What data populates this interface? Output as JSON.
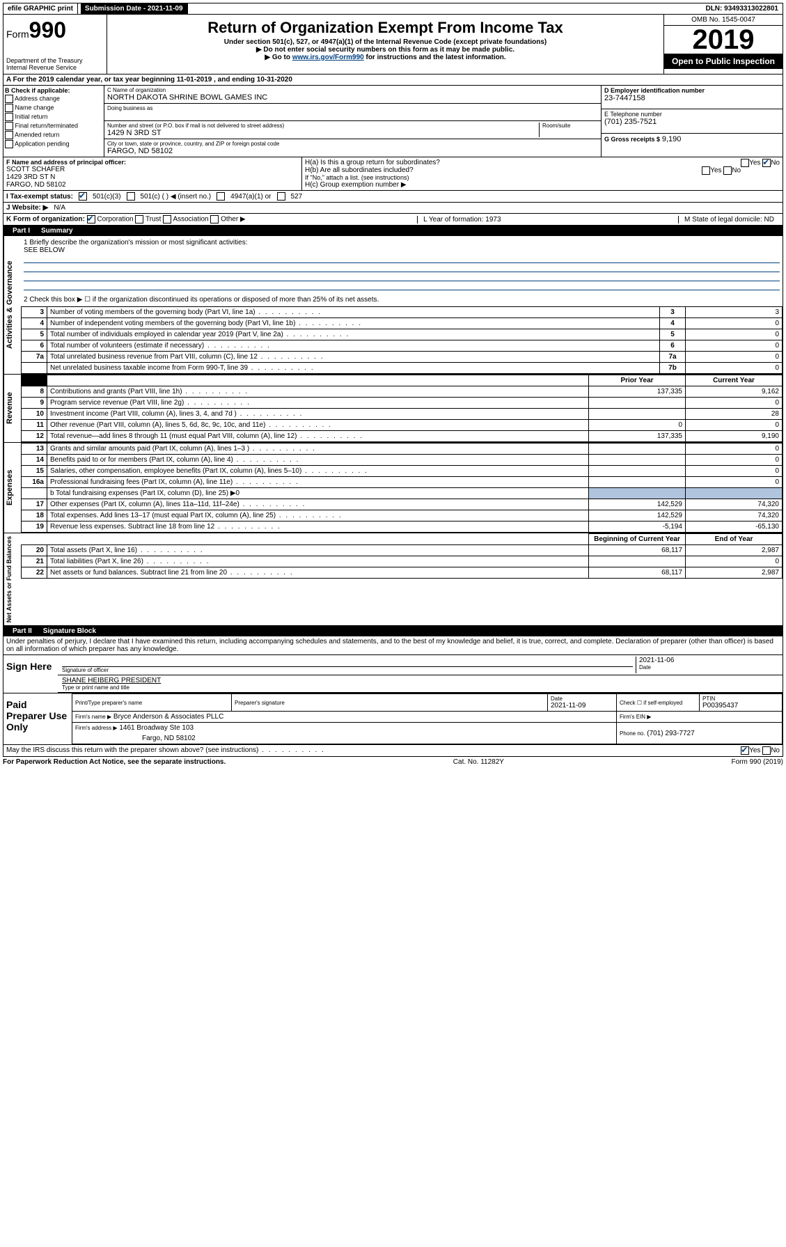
{
  "top_bar": {
    "efile": "efile GRAPHIC print",
    "submission_label": "Submission Date - 2021-11-09",
    "dln_label": "DLN: 93493313022801"
  },
  "header": {
    "form_prefix": "Form",
    "form_number": "990",
    "dept": "Department of the Treasury",
    "irs": "Internal Revenue Service",
    "title": "Return of Organization Exempt From Income Tax",
    "subtitle1": "Under section 501(c), 527, or 4947(a)(1) of the Internal Revenue Code (except private foundations)",
    "subtitle2": "▶ Do not enter social security numbers on this form as it may be made public.",
    "subtitle3_pre": "▶ Go to ",
    "subtitle3_link": "www.irs.gov/Form990",
    "subtitle3_post": " for instructions and the latest information.",
    "omb": "OMB No. 1545-0047",
    "year": "2019",
    "open_public": "Open to Public Inspection"
  },
  "period": {
    "line": "A For the 2019 calendar year, or tax year beginning 11-01-2019   , and ending 10-31-2020"
  },
  "boxB": {
    "header": "B Check if applicable:",
    "opts": [
      "Address change",
      "Name change",
      "Initial return",
      "Final return/terminated",
      "Amended return",
      "Application pending"
    ]
  },
  "boxC": {
    "name_label": "C Name of organization",
    "name": "NORTH DAKOTA SHRINE BOWL GAMES INC",
    "dba_label": "Doing business as",
    "dba": "",
    "addr_label": "Number and street (or P.O. box if mail is not delivered to street address)",
    "room_label": "Room/suite",
    "addr": "1429 N 3RD ST",
    "city_label": "City or town, state or province, country, and ZIP or foreign postal code",
    "city": "FARGO, ND  58102"
  },
  "boxD": {
    "label": "D Employer identification number",
    "value": "23-7447158"
  },
  "boxE": {
    "label": "E Telephone number",
    "value": "(701) 235-7521"
  },
  "boxG": {
    "label": "G Gross receipts $",
    "value": "9,190"
  },
  "boxF": {
    "label": "F  Name and address of principal officer:",
    "name": "SCOTT SCHAFER",
    "addr1": "1429 3RD ST N",
    "addr2": "FARGO, ND  58102"
  },
  "boxH": {
    "a": "H(a)  Is this a group return for subordinates?",
    "a_yes": "Yes",
    "a_no": "No",
    "b": "H(b)  Are all subordinates included?",
    "b_yes": "Yes",
    "b_no": "No",
    "b_note": "If \"No,\" attach a list. (see instructions)",
    "c": "H(c)  Group exemption number ▶"
  },
  "boxI": {
    "label": "I   Tax-exempt status:",
    "o1": "501(c)(3)",
    "o2": "501(c) (  ) ◀ (insert no.)",
    "o3": "4947(a)(1) or",
    "o4": "527"
  },
  "boxJ": {
    "label": "J   Website: ▶",
    "value": "N/A"
  },
  "boxK": {
    "label": "K Form of organization:",
    "o1": "Corporation",
    "o2": "Trust",
    "o3": "Association",
    "o4": "Other ▶",
    "L": "L Year of formation: 1973",
    "M": "M State of legal domicile: ND"
  },
  "part1": {
    "header_num": "Part I",
    "header_title": "Summary",
    "q1": "1  Briefly describe the organization's mission or most significant activities:",
    "q1_val": "SEE BELOW",
    "q2": "2   Check this box ▶ ☐  if the organization discontinued its operations or disposed of more than 25% of its net assets.",
    "vert1": "Activities & Governance",
    "vert2": "Revenue",
    "vert3": "Expenses",
    "vert4": "Net Assets or Fund Balances",
    "gov_rows": [
      {
        "n": "3",
        "label": "Number of voting members of the governing body (Part VI, line 1a)",
        "col": "3",
        "v": "3"
      },
      {
        "n": "4",
        "label": "Number of independent voting members of the governing body (Part VI, line 1b)",
        "col": "4",
        "v": "0"
      },
      {
        "n": "5",
        "label": "Total number of individuals employed in calendar year 2019 (Part V, line 2a)",
        "col": "5",
        "v": "0"
      },
      {
        "n": "6",
        "label": "Total number of volunteers (estimate if necessary)",
        "col": "6",
        "v": "0"
      },
      {
        "n": "7a",
        "label": "Total unrelated business revenue from Part VIII, column (C), line 12",
        "col": "7a",
        "v": "0"
      },
      {
        "n": "",
        "label": "Net unrelated business taxable income from Form 990-T, line 39",
        "col": "7b",
        "v": "0"
      }
    ],
    "col_prior": "Prior Year",
    "col_current": "Current Year",
    "rev_rows": [
      {
        "n": "8",
        "label": "Contributions and grants (Part VIII, line 1h)",
        "p": "137,335",
        "c": "9,162"
      },
      {
        "n": "9",
        "label": "Program service revenue (Part VIII, line 2g)",
        "p": "",
        "c": "0"
      },
      {
        "n": "10",
        "label": "Investment income (Part VIII, column (A), lines 3, 4, and 7d )",
        "p": "",
        "c": "28"
      },
      {
        "n": "11",
        "label": "Other revenue (Part VIII, column (A), lines 5, 6d, 8c, 9c, 10c, and 11e)",
        "p": "0",
        "c": "0"
      },
      {
        "n": "12",
        "label": "Total revenue—add lines 8 through 11 (must equal Part VIII, column (A), line 12)",
        "p": "137,335",
        "c": "9,190"
      }
    ],
    "exp_rows": [
      {
        "n": "13",
        "label": "Grants and similar amounts paid (Part IX, column (A), lines 1–3 )",
        "p": "",
        "c": "0"
      },
      {
        "n": "14",
        "label": "Benefits paid to or for members (Part IX, column (A), line 4)",
        "p": "",
        "c": "0"
      },
      {
        "n": "15",
        "label": "Salaries, other compensation, employee benefits (Part IX, column (A), lines 5–10)",
        "p": "",
        "c": "0"
      },
      {
        "n": "16a",
        "label": "Professional fundraising fees (Part IX, column (A), line 11e)",
        "p": "",
        "c": "0"
      }
    ],
    "exp_b": "b  Total fundraising expenses (Part IX, column (D), line 25) ▶0",
    "exp_rows2": [
      {
        "n": "17",
        "label": "Other expenses (Part IX, column (A), lines 11a–11d, 11f–24e)",
        "p": "142,529",
        "c": "74,320"
      },
      {
        "n": "18",
        "label": "Total expenses. Add lines 13–17 (must equal Part IX, column (A), line 25)",
        "p": "142,529",
        "c": "74,320"
      },
      {
        "n": "19",
        "label": "Revenue less expenses. Subtract line 18 from line 12",
        "p": "-5,194",
        "c": "-65,130"
      }
    ],
    "col_begin": "Beginning of Current Year",
    "col_end": "End of Year",
    "net_rows": [
      {
        "n": "20",
        "label": "Total assets (Part X, line 16)",
        "p": "68,117",
        "c": "2,987"
      },
      {
        "n": "21",
        "label": "Total liabilities (Part X, line 26)",
        "p": "",
        "c": "0"
      },
      {
        "n": "22",
        "label": "Net assets or fund balances. Subtract line 21 from line 20",
        "p": "68,117",
        "c": "2,987"
      }
    ]
  },
  "part2": {
    "header_num": "Part II",
    "header_title": "Signature Block",
    "perjury": "Under penalties of perjury, I declare that I have examined this return, including accompanying schedules and statements, and to the best of my knowledge and belief, it is true, correct, and complete. Declaration of preparer (other than officer) is based on all information of which preparer has any knowledge.",
    "sign_here": "Sign Here",
    "sig_officer": "Signature of officer",
    "sig_date": "2021-11-06",
    "sig_date_label": "Date",
    "officer_name": "SHANE HEIBERG PRESIDENT",
    "officer_name_label": "Type or print name and title",
    "paid_label": "Paid Preparer Use Only",
    "prep_name_label": "Print/Type preparer's name",
    "prep_sig_label": "Preparer's signature",
    "prep_date_label": "Date",
    "prep_date": "2021-11-09",
    "prep_check": "Check ☐ if self-employed",
    "ptin_label": "PTIN",
    "ptin": "P00395437",
    "firm_name_label": "Firm's name    ▶",
    "firm_name": "Bryce Anderson & Associates PLLC",
    "firm_ein_label": "Firm's EIN ▶",
    "firm_addr_label": "Firm's address ▶",
    "firm_addr1": "1461 Broadway Ste 103",
    "firm_addr2": "Fargo, ND  58102",
    "firm_phone_label": "Phone no.",
    "firm_phone": "(701) 293-7727",
    "discuss": "May the IRS discuss this return with the preparer shown above? (see instructions)",
    "discuss_yes": "Yes",
    "discuss_no": "No"
  },
  "footer": {
    "left": "For Paperwork Reduction Act Notice, see the separate instructions.",
    "mid": "Cat. No. 11282Y",
    "right": "Form 990 (2019)"
  }
}
